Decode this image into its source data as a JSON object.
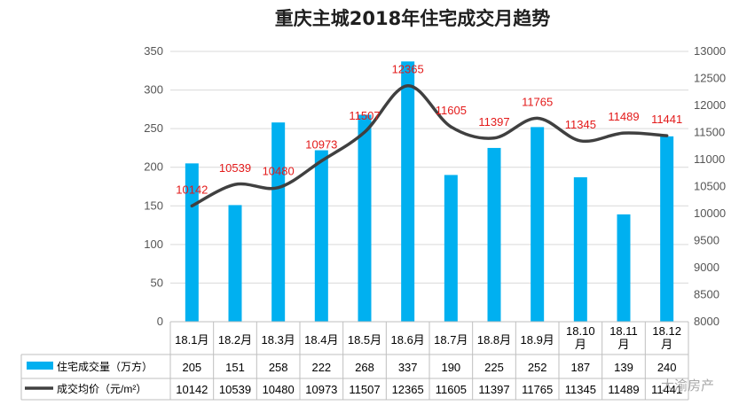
{
  "chart_data": {
    "type": "bar+line",
    "title": "重庆主城2018年住宅成交月趋势",
    "categories": [
      "18.1月",
      "18.2月",
      "18.3月",
      "18.4月",
      "18.5月",
      "18.6月",
      "18.7月",
      "18.8月",
      "18.9月",
      "18.10\n月",
      "18.11\n月",
      "18.12\n月"
    ],
    "series": [
      {
        "name": "住宅成交量（万方）",
        "type": "bar",
        "axis": "left",
        "color": "#00b0f0",
        "values": [
          205,
          151,
          258,
          222,
          268,
          337,
          190,
          225,
          252,
          187,
          139,
          240
        ],
        "table_labels": [
          "205",
          "151",
          "258",
          "222",
          "268",
          "337",
          "190",
          "225",
          "252",
          "187",
          "139",
          "240"
        ]
      },
      {
        "name": "成交均价（元/m²）",
        "type": "line",
        "axis": "right",
        "color": "#404040",
        "values": [
          10142,
          10539,
          10480,
          10973,
          11507,
          12365,
          11605,
          11397,
          11765,
          11345,
          11489,
          11441
        ],
        "data_labels": [
          "10142",
          "10539",
          "10480",
          "10973",
          "11507",
          "12365",
          "11605",
          "11397",
          "11765",
          "11345",
          "11489",
          "11441"
        ],
        "table_labels": [
          "10142",
          "10539",
          "10480",
          "10973",
          "11507",
          "12365",
          "11605",
          "11397",
          "11765",
          "11345",
          "11489",
          "11441"
        ]
      }
    ],
    "y_left": {
      "min": 0,
      "max": 350,
      "ticks": [
        "0",
        "50",
        "100",
        "150",
        "200",
        "250",
        "300",
        "350"
      ]
    },
    "y_right": {
      "min": 8000,
      "max": 13000,
      "ticks": [
        "8000",
        "8500",
        "9000",
        "9500",
        "10000",
        "10500",
        "11000",
        "11500",
        "12000",
        "12500",
        "13000"
      ]
    },
    "grid": true,
    "legend": "data-table-bottom",
    "label_color": "#e31a1a"
  },
  "watermark": "大渝房产"
}
